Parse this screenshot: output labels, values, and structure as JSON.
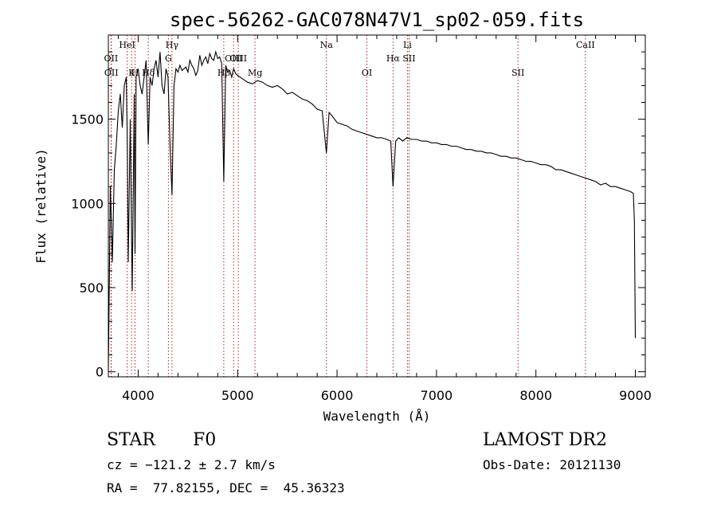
{
  "chart_data": {
    "type": "line",
    "title": "spec-56262-GAC078N47V1_sp02-059.fits",
    "xlabel": "Wavelength (Å)",
    "ylabel": "Flux (relative)",
    "xlim": [
      3700,
      9100
    ],
    "ylim": [
      -30,
      2000
    ],
    "xticks": [
      4000,
      5000,
      6000,
      7000,
      8000,
      9000
    ],
    "yticks": [
      0,
      500,
      1000,
      1500
    ],
    "grid": false,
    "line_color": "#000000",
    "marker_color": "#b22222",
    "series": [
      {
        "x": [
          3700,
          3720,
          3740,
          3760,
          3780,
          3800,
          3820,
          3840,
          3860,
          3880,
          3890,
          3900,
          3920,
          3940,
          3960,
          3968,
          3980,
          4000,
          4020,
          4040,
          4060,
          4080,
          4101,
          4120,
          4140,
          4160,
          4180,
          4200,
          4220,
          4240,
          4260,
          4280,
          4300,
          4320,
          4340,
          4360,
          4380,
          4400,
          4420,
          4440,
          4460,
          4480,
          4500,
          4520,
          4540,
          4560,
          4580,
          4600,
          4620,
          4640,
          4660,
          4680,
          4700,
          4720,
          4740,
          4760,
          4780,
          4800,
          4820,
          4840,
          4861,
          4880,
          4900,
          4920,
          4940,
          4960,
          4980,
          5000,
          5050,
          5100,
          5150,
          5200,
          5250,
          5300,
          5350,
          5400,
          5450,
          5500,
          5550,
          5600,
          5650,
          5700,
          5750,
          5800,
          5850,
          5893,
          5920,
          5950,
          6000,
          6050,
          6100,
          6150,
          6200,
          6250,
          6300,
          6350,
          6400,
          6450,
          6500,
          6540,
          6563,
          6590,
          6620,
          6660,
          6700,
          6750,
          6800,
          6850,
          6900,
          6950,
          7000,
          7050,
          7100,
          7150,
          7200,
          7250,
          7300,
          7350,
          7400,
          7450,
          7500,
          7550,
          7600,
          7650,
          7700,
          7750,
          7800,
          7850,
          7900,
          7950,
          8000,
          8050,
          8100,
          8150,
          8200,
          8250,
          8300,
          8350,
          8400,
          8450,
          8500,
          8550,
          8600,
          8650,
          8700,
          8750,
          8800,
          8850,
          8900,
          8950,
          8980,
          8990,
          9000
        ],
        "y": [
          0,
          1100,
          650,
          1200,
          1350,
          1550,
          1650,
          1450,
          1700,
          1750,
          1400,
          650,
          1500,
          480,
          1650,
          700,
          1750,
          1800,
          1700,
          1650,
          1750,
          1850,
          1350,
          1750,
          1700,
          1800,
          1850,
          1750,
          1900,
          1700,
          1650,
          1800,
          1750,
          1350,
          1050,
          1700,
          1800,
          1780,
          1820,
          1790,
          1800,
          1810,
          1780,
          1850,
          1820,
          1800,
          1760,
          1790,
          1880,
          1820,
          1850,
          1870,
          1830,
          1890,
          1860,
          1850,
          1900,
          1860,
          1870,
          1830,
          1130,
          1820,
          1780,
          1790,
          1750,
          1800,
          1770,
          1760,
          1740,
          1720,
          1710,
          1730,
          1720,
          1700,
          1690,
          1700,
          1680,
          1650,
          1660,
          1640,
          1620,
          1610,
          1590,
          1560,
          1550,
          1300,
          1540,
          1520,
          1480,
          1470,
          1460,
          1440,
          1430,
          1420,
          1410,
          1400,
          1390,
          1390,
          1380,
          1370,
          1100,
          1370,
          1390,
          1370,
          1390,
          1380,
          1380,
          1370,
          1370,
          1360,
          1360,
          1350,
          1350,
          1340,
          1340,
          1330,
          1320,
          1320,
          1310,
          1310,
          1300,
          1300,
          1290,
          1280,
          1280,
          1270,
          1270,
          1260,
          1250,
          1250,
          1240,
          1230,
          1230,
          1220,
          1200,
          1200,
          1190,
          1180,
          1170,
          1160,
          1150,
          1140,
          1130,
          1110,
          1120,
          1100,
          1100,
          1090,
          1080,
          1070,
          1060,
          900,
          200
        ]
      }
    ],
    "lines": [
      {
        "label": "OII",
        "x": 3727,
        "row": 1
      },
      {
        "label": "OII",
        "x": 3730,
        "row": 2
      },
      {
        "label": "HeI",
        "x": 3889,
        "row": 0
      },
      {
        "label": "K",
        "x": 3934,
        "row": 2
      },
      {
        "label": "H",
        "x": 3968,
        "row": 2
      },
      {
        "label": "Hδ",
        "x": 4102,
        "row": 2
      },
      {
        "label": "Hγ",
        "x": 4340,
        "row": 0
      },
      {
        "label": "G",
        "x": 4304,
        "row": 1
      },
      {
        "label": "Hβ",
        "x": 4861,
        "row": 2
      },
      {
        "label": "OIII",
        "x": 4959,
        "row": 1
      },
      {
        "label": "OIII",
        "x": 5007,
        "row": 1
      },
      {
        "label": "Mg",
        "x": 5175,
        "row": 2
      },
      {
        "label": "Na",
        "x": 5893,
        "row": 0
      },
      {
        "label": "OI",
        "x": 6300,
        "row": 2
      },
      {
        "label": "Hα",
        "x": 6563,
        "row": 1
      },
      {
        "label": "Li",
        "x": 6708,
        "row": 0
      },
      {
        "label": "SII",
        "x": 6724,
        "row": 1
      },
      {
        "label": "SII",
        "x": 7820,
        "row": 2
      },
      {
        "label": "CaII",
        "x": 8498,
        "row": 0
      }
    ]
  },
  "info": {
    "object_class": "STAR",
    "subclass": "F0",
    "survey": "LAMOST DR2",
    "redshift_line": "cz = −121.2 ± 2.7 km/s",
    "obs_date_line": "Obs-Date: 20121130",
    "coords_line": "RA =  77.82155, DEC =  45.36323"
  }
}
